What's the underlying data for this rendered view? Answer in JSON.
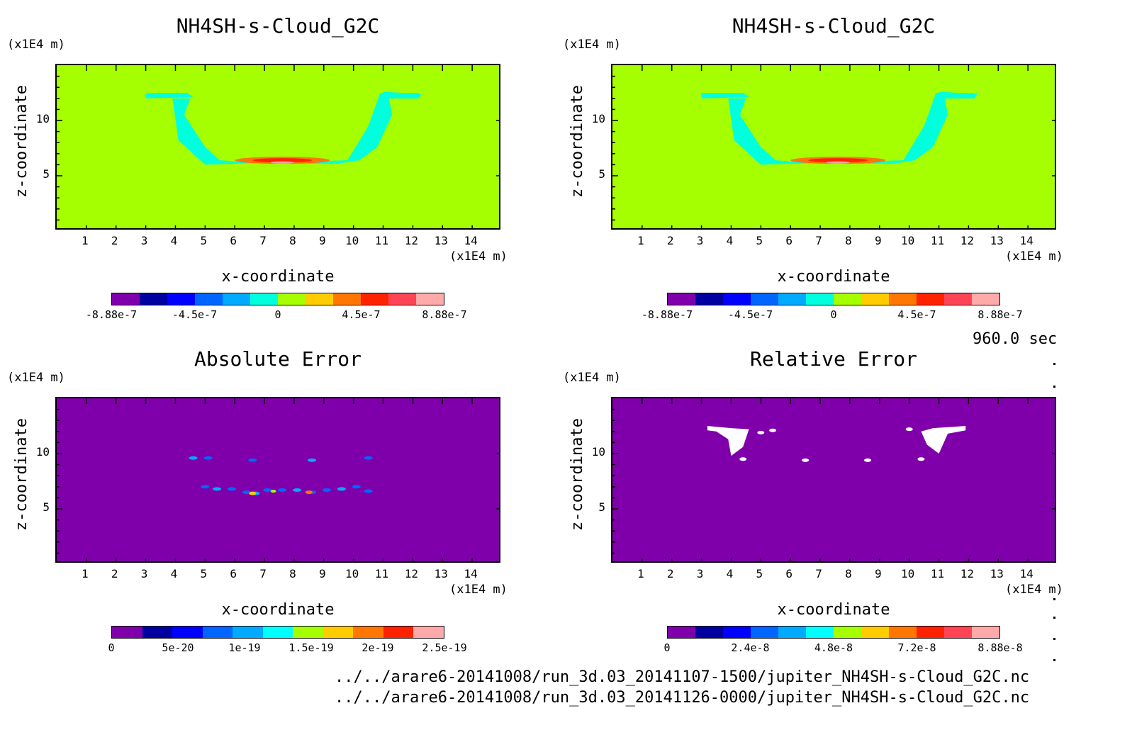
{
  "timestamp": "960.0 sec",
  "files": [
    "../../arare6-20141008/run_3d.03_20141107-1500/jupiter_NH4SH-s-Cloud_G2C.nc",
    "../../arare6-20141008/run_3d.03_20141126-0000/jupiter_NH4SH-s-Cloud_G2C.nc"
  ],
  "chart_data": [
    {
      "type": "heatmap",
      "title": "NH4SH-s-Cloud_G2C",
      "xlabel": "x-coordinate",
      "ylabel": "z-coordinate",
      "x_unit": "(x1E4 m)",
      "y_unit": "(x1E4 m)",
      "xticks": [
        "1",
        "2",
        "3",
        "4",
        "5",
        "6",
        "7",
        "8",
        "9",
        "10",
        "11",
        "12",
        "13",
        "14"
      ],
      "yticks": [
        "5",
        "10"
      ],
      "xlim": [
        0,
        15
      ],
      "ylim": [
        0,
        15
      ],
      "background_color": "#a6ff00",
      "colorbar": {
        "colors": [
          "#7f00aa",
          "#0000a0",
          "#0000ff",
          "#0066ff",
          "#00aaff",
          "#00ffdd",
          "#a6ff00",
          "#ffcc00",
          "#ff7700",
          "#ff2200",
          "#ff4455",
          "#ffaaaa"
        ],
        "labels": [
          "-8.88e-7",
          "-4.5e-7",
          "0",
          "4.5e-7",
          "8.88e-7"
        ]
      }
    },
    {
      "type": "heatmap",
      "title": "NH4SH-s-Cloud_G2C",
      "xlabel": "x-coordinate",
      "ylabel": "z-coordinate",
      "x_unit": "(x1E4 m)",
      "y_unit": "(x1E4 m)",
      "xticks": [
        "1",
        "2",
        "3",
        "4",
        "5",
        "6",
        "7",
        "8",
        "9",
        "10",
        "11",
        "12",
        "13",
        "14"
      ],
      "yticks": [
        "5",
        "10"
      ],
      "xlim": [
        0,
        15
      ],
      "ylim": [
        0,
        15
      ],
      "background_color": "#a6ff00",
      "colorbar": {
        "colors": [
          "#7f00aa",
          "#0000a0",
          "#0000ff",
          "#0066ff",
          "#00aaff",
          "#00ffdd",
          "#a6ff00",
          "#ffcc00",
          "#ff7700",
          "#ff2200",
          "#ff4455",
          "#ffaaaa"
        ],
        "labels": [
          "-8.88e-7",
          "-4.5e-7",
          "0",
          "4.5e-7",
          "8.88e-7"
        ]
      }
    },
    {
      "type": "heatmap",
      "title": "Absolute Error",
      "xlabel": "x-coordinate",
      "ylabel": "z-coordinate",
      "x_unit": "(x1E4 m)",
      "y_unit": "(x1E4 m)",
      "xticks": [
        "1",
        "2",
        "3",
        "4",
        "5",
        "6",
        "7",
        "8",
        "9",
        "10",
        "11",
        "12",
        "13",
        "14"
      ],
      "yticks": [
        "5",
        "10"
      ],
      "xlim": [
        0,
        15
      ],
      "ylim": [
        0,
        15
      ],
      "background_color": "#7f00aa",
      "colorbar": {
        "colors": [
          "#7f00aa",
          "#0000a0",
          "#0000ff",
          "#0066ff",
          "#00aaff",
          "#00ffff",
          "#a6ff00",
          "#ffcc00",
          "#ff7700",
          "#ff2200",
          "#ffaaaa"
        ],
        "labels": [
          "0",
          "5e-20",
          "1e-19",
          "1.5e-19",
          "2e-19",
          "2.5e-19"
        ]
      }
    },
    {
      "type": "heatmap",
      "title": "Relative Error",
      "xlabel": "x-coordinate",
      "ylabel": "z-coordinate",
      "x_unit": "(x1E4 m)",
      "y_unit": "(x1E4 m)",
      "xticks": [
        "1",
        "2",
        "3",
        "4",
        "5",
        "6",
        "7",
        "8",
        "9",
        "10",
        "11",
        "12",
        "13",
        "14"
      ],
      "yticks": [
        "5",
        "10"
      ],
      "xlim": [
        0,
        15
      ],
      "ylim": [
        0,
        15
      ],
      "background_color": "#7f00aa",
      "colorbar": {
        "colors": [
          "#7f00aa",
          "#0000a0",
          "#0000ff",
          "#0066ff",
          "#00aaff",
          "#00ffff",
          "#a6ff00",
          "#ffcc00",
          "#ff7700",
          "#ff2200",
          "#ff4455",
          "#ffaaaa"
        ],
        "labels": [
          "0",
          "2.4e-8",
          "4.8e-8",
          "7.2e-8",
          "8.88e-8"
        ]
      }
    }
  ]
}
